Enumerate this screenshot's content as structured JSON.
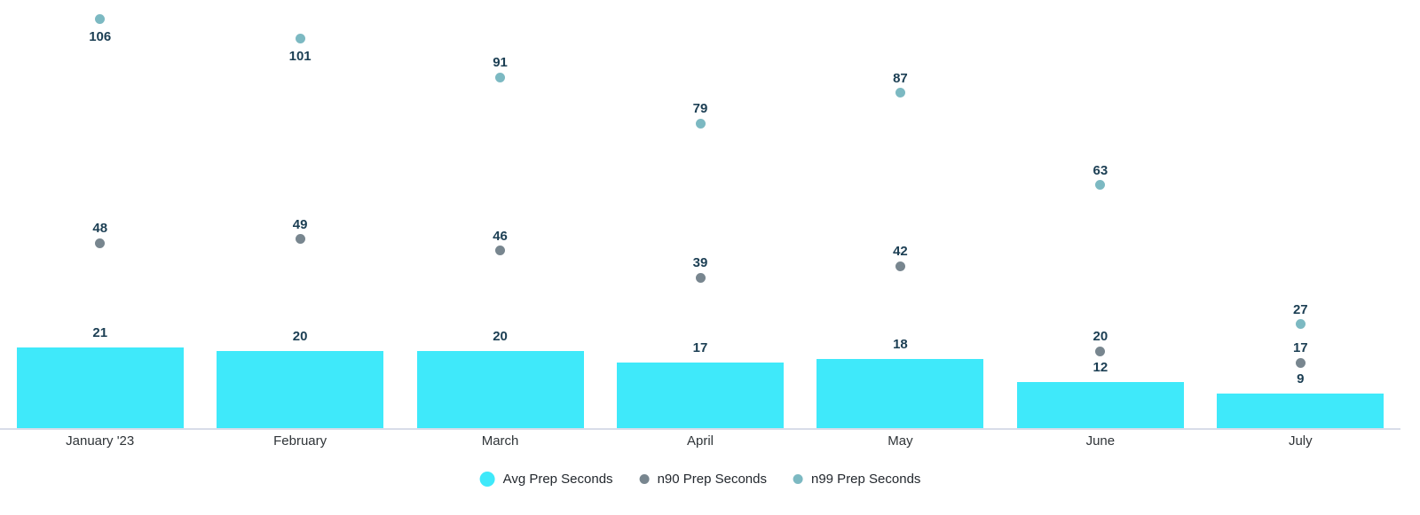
{
  "page": {
    "background": "#ffffff"
  },
  "chart_data": {
    "type": "bar",
    "title": "",
    "xlabel": "",
    "ylabel": "",
    "categories": [
      "January '23",
      "February",
      "March",
      "April",
      "May",
      "June",
      "July"
    ],
    "series": [
      {
        "name": "Avg Prep Seconds",
        "kind": "bar",
        "color": "#3FE9FA",
        "values": [
          21,
          20,
          20,
          17,
          18,
          12,
          9
        ]
      },
      {
        "name": "n90 Prep Seconds",
        "kind": "point",
        "color": "#78868F",
        "values": [
          48,
          49,
          46,
          39,
          42,
          20,
          17
        ]
      },
      {
        "name": "n99 Prep Seconds",
        "kind": "point",
        "color": "#7CB9C2",
        "values": [
          106,
          101,
          91,
          79,
          87,
          63,
          27
        ]
      }
    ],
    "ylim": [
      0,
      111
    ],
    "grid": false,
    "legend_position": "bottom",
    "data_labels_visible": true,
    "colors": {
      "data_label": "#1B3E53",
      "category_label": "#2F3438",
      "legend_text": "#23282E",
      "axis_line": "#D8DDE9"
    }
  }
}
